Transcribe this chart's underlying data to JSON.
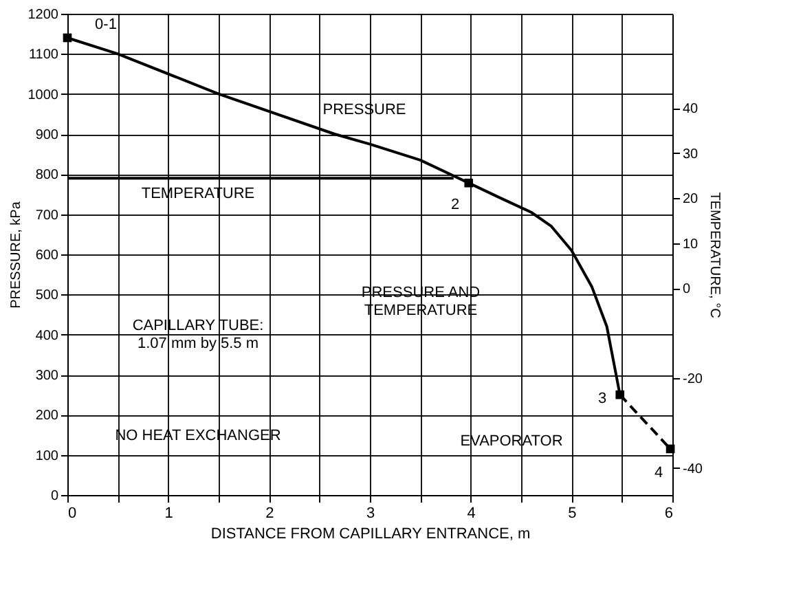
{
  "chart_data": {
    "type": "line",
    "xlabel": "DISTANCE FROM CAPILLARY ENTRANCE, m",
    "ylabel": "PRESSURE, kPa",
    "y2label": "TEMPERATURE, °C",
    "xlim": [
      0,
      6
    ],
    "ylim": [
      0,
      1200
    ],
    "xticks": [
      0,
      {
        "value": 0.5,
        "label": null
      },
      1,
      {
        "value": 1.5,
        "label": null
      },
      2,
      {
        "value": 2.5,
        "label": null
      },
      3,
      {
        "value": 3.5,
        "label": null
      },
      4,
      {
        "value": 4.5,
        "label": null
      },
      5,
      {
        "value": 5.5,
        "label": null
      },
      6
    ],
    "yticks": [
      0,
      100,
      200,
      300,
      400,
      500,
      600,
      700,
      800,
      900,
      1000,
      1100,
      1200
    ],
    "y2lim": [
      -46,
      61
    ],
    "y2ticks": [
      -40,
      -20,
      0,
      10,
      20,
      30,
      40
    ],
    "grid": true,
    "series": [
      {
        "color": "#000000",
        "line_style": "solid",
        "marker": "none",
        "x": [
          0,
          0.5,
          1.5,
          2.65,
          3,
          3.5,
          3.98,
          4.3,
          4.6,
          4.8,
          5.0,
          5.2,
          5.35,
          5.48
        ],
        "values": [
          1140,
          1100,
          1000,
          900,
          875,
          835,
          778,
          740,
          705,
          670,
          610,
          520,
          420,
          250
        ]
      },
      {
        "color": "#000000",
        "line_style": "solid",
        "marker": "none",
        "x": [
          0,
          3.83
        ],
        "values": [
          790,
          790
        ]
      },
      {
        "color": "#000000",
        "line_style": "dashed",
        "marker": "none",
        "x": [
          5.48,
          5.98
        ],
        "values": [
          250,
          115
        ]
      },
      {
        "type": "scatter",
        "color": "#000000",
        "marker": "square",
        "x": [
          0,
          3.98,
          5.48,
          5.98
        ],
        "values": [
          1140,
          778,
          250,
          115
        ]
      }
    ],
    "annotations": [
      "0-1",
      "PRESSURE",
      "TEMPERATURE",
      "2",
      "PRESSURE AND\nTEMPERATURE",
      "CAPILLARY TUBE:\n1.07 mm by 5.5 m",
      "NO HEAT EXCHANGER",
      "3",
      "EVAPORATOR",
      "4"
    ]
  }
}
